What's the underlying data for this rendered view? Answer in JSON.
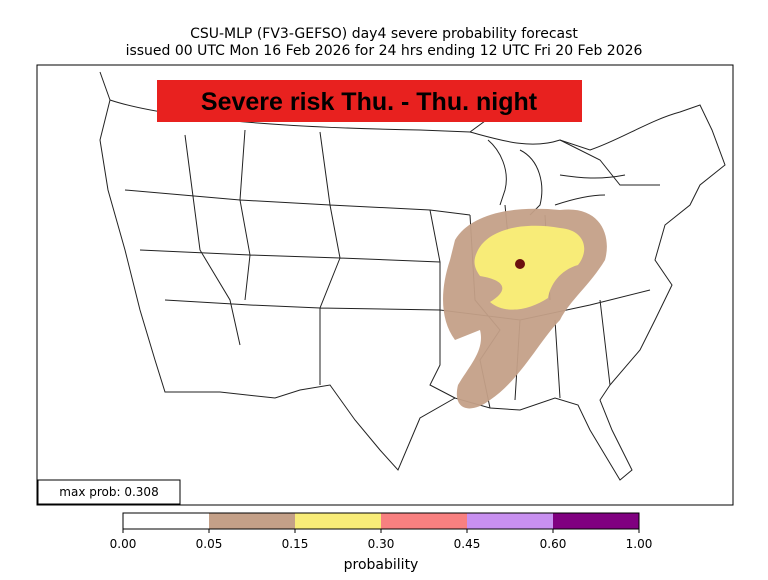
{
  "header": {
    "title": "CSU-MLP (FV3-GEFSO) day4 severe probability forecast",
    "subtitle": "issued 00 UTC Mon 16 Feb 2026 for 24 hrs ending 12 UTC Fri 20 Feb 2026"
  },
  "banner": "Severe risk Thu. - Thu. night",
  "max_prob_label": "max prob: 0.308",
  "colorbar": {
    "label": "probability",
    "ticks": [
      "0.00",
      "0.05",
      "0.15",
      "0.30",
      "0.45",
      "0.60",
      "1.00"
    ],
    "colors": [
      "#ffffff",
      "#c4a088",
      "#f8ec78",
      "#f88080",
      "#c890f0",
      "#800080"
    ]
  }
}
